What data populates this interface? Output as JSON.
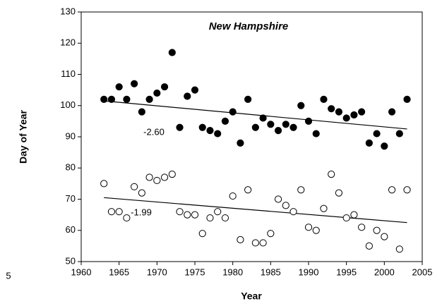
{
  "chart_data": {
    "type": "scatter",
    "title": "New Hampshire",
    "x_label": "Year",
    "y_label": "Day of Year",
    "x": [
      1963,
      1964,
      1965,
      1966,
      1967,
      1968,
      1969,
      1970,
      1971,
      1972,
      1973,
      1974,
      1975,
      1976,
      1977,
      1978,
      1979,
      1980,
      1981,
      1982,
      1983,
      1984,
      1985,
      1986,
      1987,
      1988,
      1989,
      1990,
      1991,
      1992,
      1993,
      1994,
      1995,
      1996,
      1997,
      1998,
      1999,
      2000,
      2001,
      2002,
      2003
    ],
    "series": [
      {
        "color": "#000000",
        "marker": "filled",
        "values": [
          102,
          102,
          106,
          102,
          107,
          98,
          102,
          104,
          106,
          117,
          93,
          103,
          105,
          93,
          92,
          91,
          95,
          98,
          88,
          102,
          93,
          96,
          94,
          92,
          94,
          93,
          100,
          95,
          91,
          102,
          99,
          98,
          96,
          97,
          98,
          88,
          91,
          87,
          98,
          91,
          102
        ]
      },
      {
        "color": "#000000",
        "marker": "open",
        "values": [
          75,
          66,
          66,
          64,
          74,
          72,
          77,
          76,
          77,
          78,
          66,
          65,
          65,
          59,
          64,
          66,
          64,
          71,
          57,
          73,
          56,
          56,
          59,
          70,
          68,
          66,
          73,
          61,
          60,
          67,
          78,
          72,
          64,
          65,
          61,
          55,
          60,
          58,
          73,
          54,
          73
        ]
      }
    ],
    "trend_lines": [
      {
        "x": [
          1963,
          2003
        ],
        "values": [
          101.5,
          92.5
        ]
      },
      {
        "x": [
          1963,
          2003
        ],
        "values": [
          70.5,
          62.5
        ]
      }
    ],
    "annotations": [
      "-2.60",
      "-1.99",
      "5"
    ],
    "xlim": [
      1960,
      2005
    ],
    "xticks": [
      1960,
      1965,
      1970,
      1975,
      1980,
      1985,
      1990,
      1995,
      2000,
      2005
    ],
    "ylim": [
      50,
      130
    ],
    "yticks": [
      50,
      60,
      70,
      80,
      90,
      100,
      110,
      120,
      130
    ],
    "grid": false
  }
}
